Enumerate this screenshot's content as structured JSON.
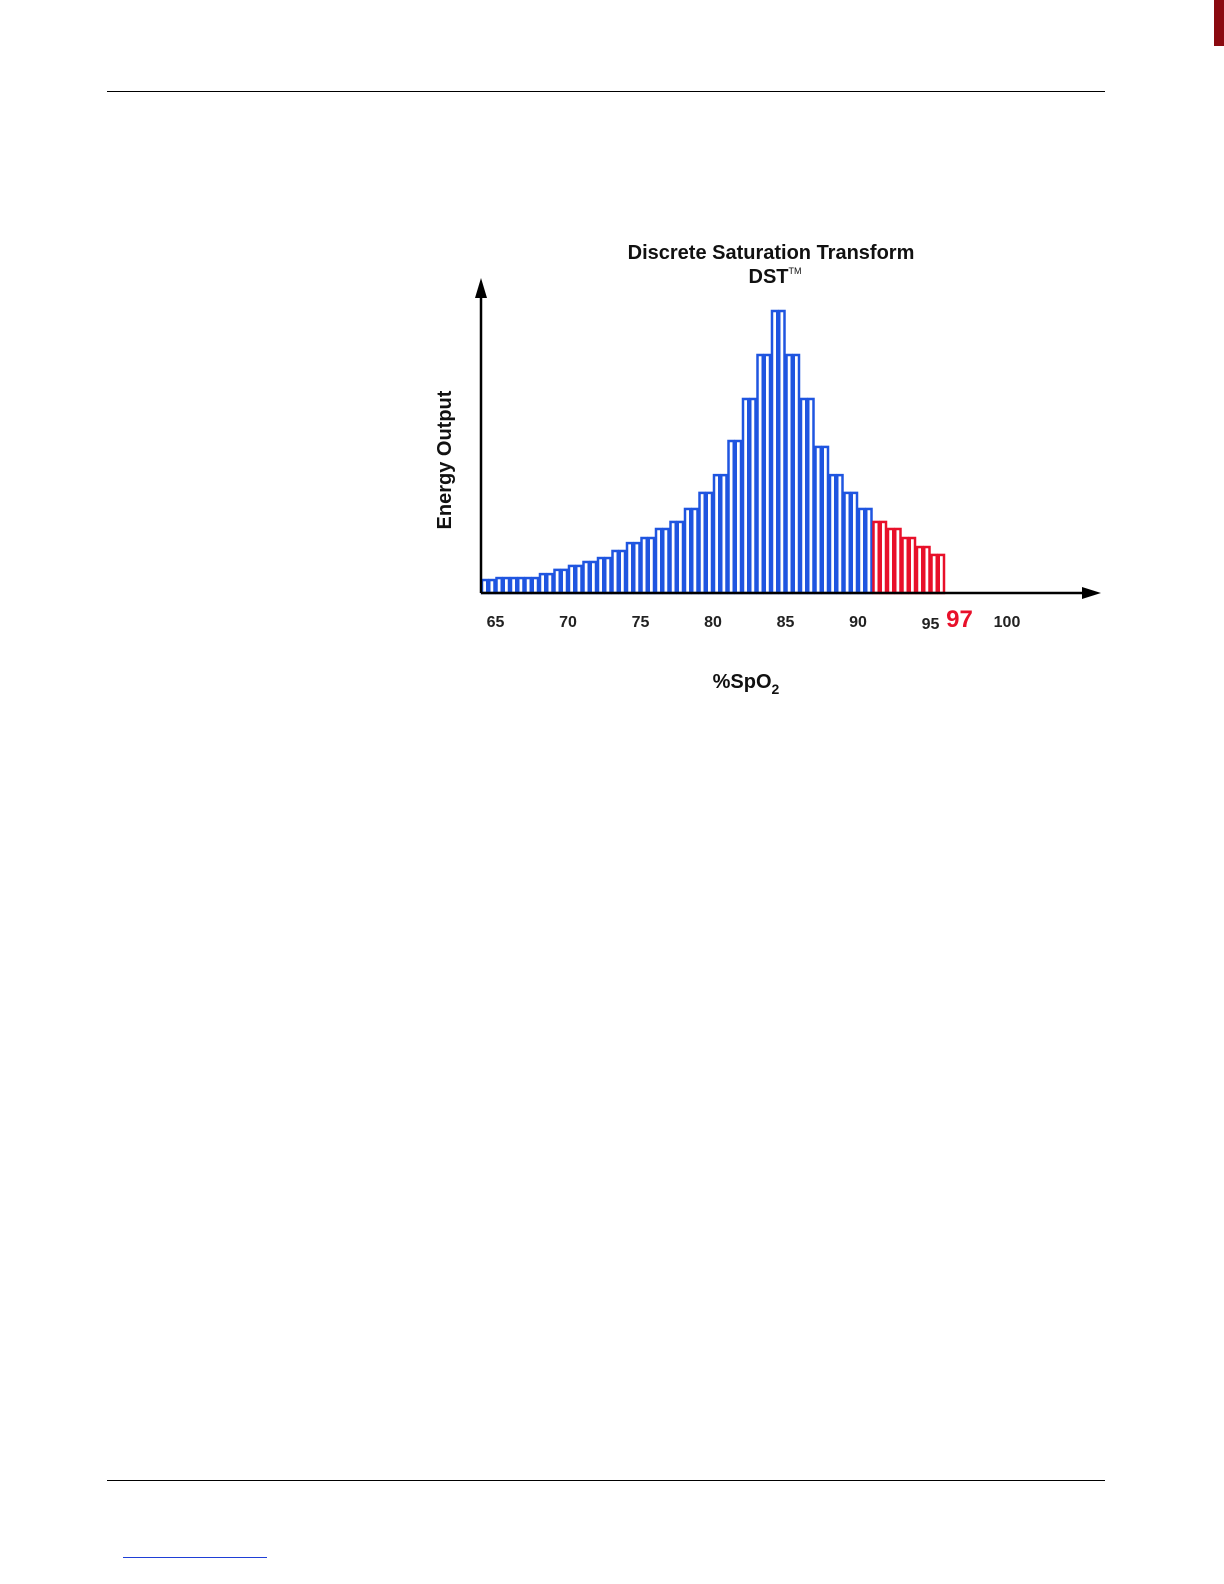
{
  "page": {
    "colors": {
      "rule": "#000000",
      "footer_link": "#1f3fd6",
      "corner_mark": "#8a0a10"
    }
  },
  "chart_data": {
    "type": "bar",
    "title": "Discrete Saturation Transform",
    "subtitle": "DST",
    "subtitle_mark": "TM",
    "xlabel": "%SpO",
    "xlabel_sub": "2",
    "ylabel": "Energy Output",
    "x_ticks": [
      {
        "value": 65,
        "label": "65"
      },
      {
        "value": 70,
        "label": "70"
      },
      {
        "value": 75,
        "label": "75"
      },
      {
        "value": 80,
        "label": "80"
      },
      {
        "value": 85,
        "label": "85"
      },
      {
        "value": 90,
        "label": "90"
      },
      {
        "value": 95,
        "label": "95"
      },
      {
        "value": 97,
        "label": "97",
        "highlight": true
      },
      {
        "value": 100,
        "label": "100"
      }
    ],
    "xlim": [
      64,
      104
    ],
    "ylim": [
      0,
      100
    ],
    "bar_width": 0.5,
    "grid": false,
    "series": [
      {
        "color": "#1f55e0",
        "x": [
          64.0,
          64.5,
          65.0,
          65.5,
          66.0,
          66.5,
          67.0,
          67.5,
          68.0,
          68.5,
          69.0,
          69.5,
          70.0,
          70.5,
          71.0,
          71.5,
          72.0,
          72.5,
          73.0,
          73.5,
          74.0,
          74.5,
          75.0,
          75.5,
          76.0,
          76.5,
          77.0,
          77.5,
          78.0,
          78.5,
          79.0,
          79.5,
          80.0,
          80.5,
          81.0,
          81.5,
          82.0,
          82.5,
          83.0,
          83.5,
          84.0,
          84.5,
          85.0,
          85.5,
          86.0,
          86.5,
          87.0,
          87.5,
          88.0,
          88.5,
          89.0,
          89.5,
          90.0,
          90.5,
          91.0,
          91.5,
          92.0,
          92.5,
          93.0,
          93.5,
          94.0,
          94.5,
          95.0,
          95.5
        ],
        "values": [
          4.6,
          4.6,
          5.3,
          5.3,
          5.3,
          5.3,
          5.3,
          5.3,
          6.7,
          6.7,
          8.2,
          8.2,
          9.6,
          9.6,
          11.0,
          11.0,
          12.4,
          12.4,
          14.9,
          14.9,
          17.7,
          17.7,
          19.5,
          19.5,
          22.7,
          22.7,
          25.2,
          25.2,
          29.8,
          29.8,
          35.5,
          35.5,
          41.8,
          41.8,
          53.9,
          53.9,
          68.8,
          68.8,
          84.4,
          84.4,
          100.0,
          100.0,
          84.4,
          84.4,
          68.8,
          68.8,
          51.8,
          51.8,
          41.8,
          41.8,
          35.5,
          35.5,
          29.8,
          29.8,
          25.2,
          25.2,
          22.7,
          22.7,
          19.5,
          19.5,
          16.3,
          16.3,
          13.5,
          13.5
        ]
      }
    ]
  }
}
